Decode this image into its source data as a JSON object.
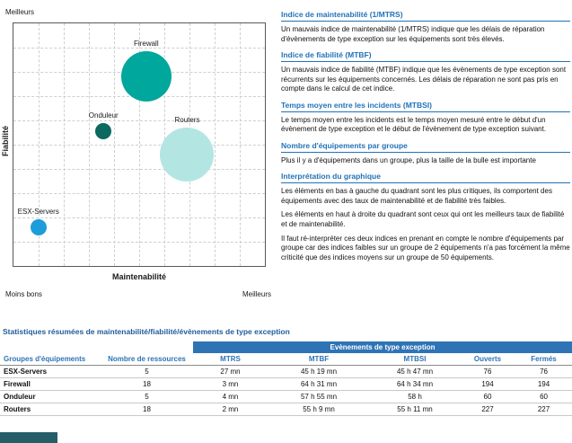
{
  "chart": {
    "top_left_label": "Meilleurs",
    "bottom_left_label": "Moins bons",
    "bottom_right_label": "Meilleurs",
    "y_axis_title": "Fiabilité",
    "x_axis_title": "Maintenabilité"
  },
  "chart_data": {
    "type": "scatter",
    "subtype": "bubble",
    "xlabel": "Maintenabilité",
    "ylabel": "Fiabilité",
    "x_axis_scale": [
      "Moins bons",
      "Meilleurs"
    ],
    "y_axis_scale": [
      "Moins bons",
      "Meilleurs"
    ],
    "grid": "dashed",
    "bubble_size_meaning": "Nombre d'équipements par groupe",
    "bubbles": [
      {
        "name": "Firewall",
        "x_pct": 52.8,
        "y_pct": 22.0,
        "radius_px": 28,
        "color": "#00A79C",
        "resources": 18,
        "mtrs": "3 mn",
        "mtbf": "64 h 31 mn"
      },
      {
        "name": "Onduleur",
        "x_pct": 35.8,
        "y_pct": 44.5,
        "radius_px": 9,
        "color": "#0B695F",
        "resources": 5,
        "mtrs": "4 mn",
        "mtbf": "57 h 55 mn"
      },
      {
        "name": "Routers",
        "x_pct": 69.1,
        "y_pct": 54.0,
        "radius_px": 30,
        "color": "#B3E6E2",
        "resources": 18,
        "mtrs": "2 mn",
        "mtbf": "55 h 9 mn"
      },
      {
        "name": "ESX-Servers",
        "x_pct": 9.9,
        "y_pct": 84.0,
        "radius_px": 9,
        "color": "#1C9DD9",
        "resources": 5,
        "mtrs": "27 mn",
        "mtbf": "45 h 19 mn"
      }
    ]
  },
  "sections": [
    {
      "heading": "Indice de maintenabilité (1/MTRS)",
      "paragraphs": [
        "Un mauvais indice de maintenabilité (1/MTRS) indique que les délais de réparation d'évènements de type exception sur les équipements sont très élevés."
      ]
    },
    {
      "heading": "Indice de fiabilité (MTBF)",
      "paragraphs": [
        "Un mauvais indice de fiabilité (MTBF) indique que les évènements de type exception sont récurrents sur les équipements concernés. Les délais de réparation ne sont pas pris en compte dans le calcul de cet indice."
      ]
    },
    {
      "heading": "Temps moyen entre les incidents (MTBSI)",
      "paragraphs": [
        "Le temps moyen entre les incidents est le temps moyen mesuré entre le début d'un évènement de type exception et le début de l'évènement de type exception suivant."
      ]
    },
    {
      "heading": "Nombre d'équipements par groupe",
      "paragraphs": [
        "Plus il y a d'équipements dans un groupe, plus la taille de la bulle est importante"
      ]
    },
    {
      "heading": "Interprétation du graphique",
      "paragraphs": [
        "Les éléments en bas à gauche du quadrant sont les plus critiques, ils comportent des équipements avec des taux de maintenabilité et de fiabilité très faibles.",
        "Les éléments en haut à droite du quadrant sont ceux qui ont les meilleurs taux de fiabilité et de maintenabilité.",
        "Il faut ré-interpréter ces deux indices en prenant en compte le nombre d'équipements par groupe car des indices faibles sur un groupe de 2 équipements n'a pas forcément la même criticité que des indices moyens sur un groupe de 50 équipements."
      ]
    }
  ],
  "table": {
    "title": "Statistiques résumées de maintenabilité/fiabilité/évènements de type exception",
    "group_header": "Evènements de type exception",
    "columns": [
      "Groupes d'équipements",
      "Nombre de ressources",
      "MTRS",
      "MTBF",
      "MTBSI",
      "Ouverts",
      "Fermés"
    ],
    "rows": [
      [
        "ESX-Servers",
        "5",
        "27 mn",
        "45 h 19 mn",
        "45 h 47 mn",
        "76",
        "76"
      ],
      [
        "Firewall",
        "18",
        "3 mn",
        "64 h 31 mn",
        "64 h 34 mn",
        "194",
        "194"
      ],
      [
        "Onduleur",
        "5",
        "4 mn",
        "57 h 55 mn",
        "58 h",
        "60",
        "60"
      ],
      [
        "Routers",
        "18",
        "2 mn",
        "55 h 9 mn",
        "55 h 11 mn",
        "227",
        "227"
      ]
    ]
  },
  "colors": {
    "heading_blue": "#2272B8",
    "table_header_bg": "#2E74B5",
    "table_header_text": "#FFFFFF",
    "column_header_text": "#2E74B5",
    "cropped_bar": "#265E68"
  }
}
